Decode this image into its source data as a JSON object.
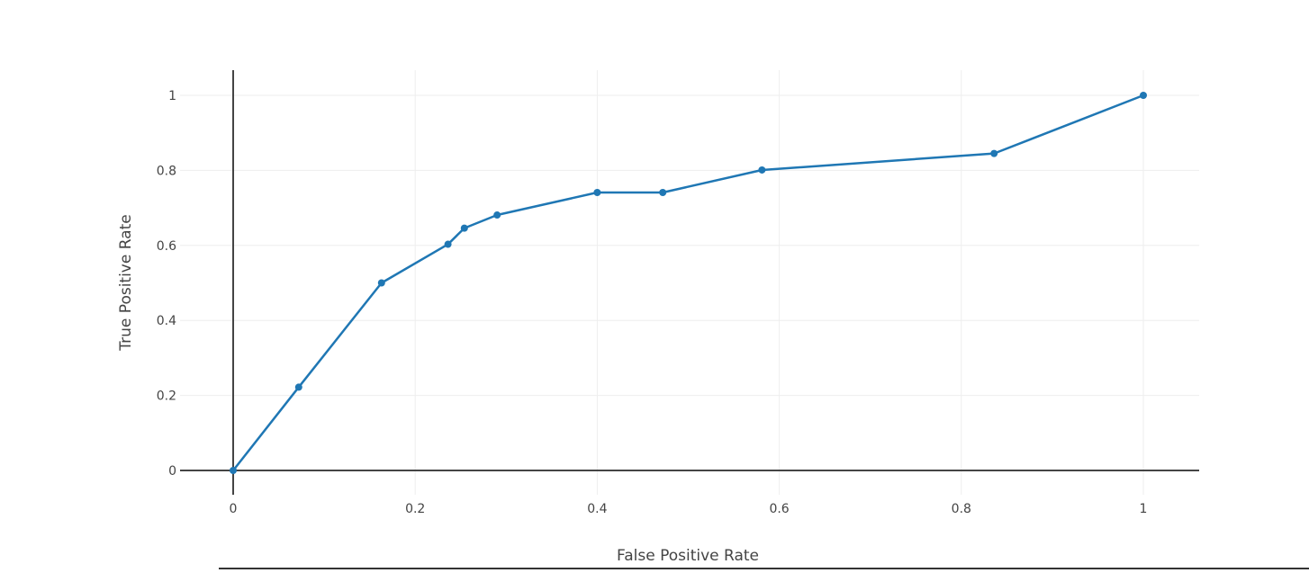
{
  "chart_data": {
    "type": "line",
    "xlabel": "False Positive Rate",
    "ylabel": "True Positive Rate",
    "xlim": [
      -0.07,
      1.06
    ],
    "ylim": [
      -0.07,
      1.07
    ],
    "x_ticks": [
      0,
      0.2,
      0.4,
      0.6,
      0.8,
      1
    ],
    "x_tick_labels": [
      "0",
      "0.2",
      "0.4",
      "0.6",
      "0.8",
      "1"
    ],
    "y_ticks": [
      0,
      0.2,
      0.4,
      0.6,
      0.8,
      1
    ],
    "y_tick_labels": [
      "0",
      "0.2",
      "0.4",
      "0.6",
      "0.8",
      "1"
    ],
    "grid": true,
    "legend": false,
    "series": [
      {
        "color": "#1f77b4",
        "mode": "lines+markers",
        "x": [
          0,
          0.072,
          0.163,
          0.236,
          0.254,
          0.29,
          0.4,
          0.472,
          0.581,
          0.836,
          1.0
        ],
        "y": [
          0,
          0.222,
          0.5,
          0.603,
          0.646,
          0.681,
          0.741,
          0.741,
          0.801,
          0.845,
          1.0
        ]
      }
    ]
  }
}
